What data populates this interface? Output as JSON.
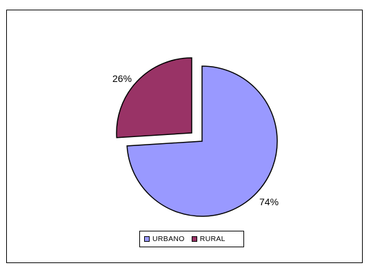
{
  "chart_data": {
    "type": "pie",
    "categories": [
      "URBANO",
      "RURAL"
    ],
    "values": [
      74,
      26
    ],
    "data_labels": [
      "74%",
      "26%"
    ],
    "colors": [
      "#9999ff",
      "#993366"
    ],
    "exploded": true,
    "legend_position": "bottom"
  }
}
